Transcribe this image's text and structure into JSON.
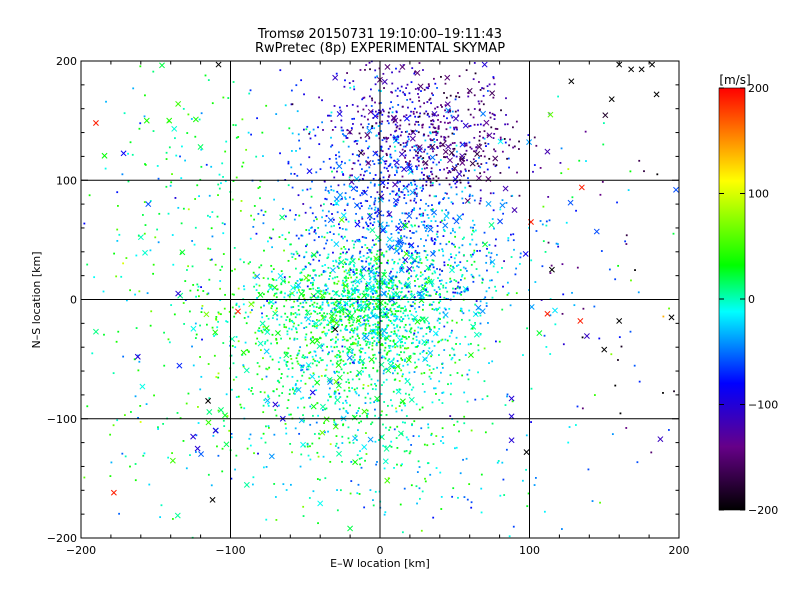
{
  "chart_data": {
    "type": "scatter",
    "title": "Tromsø 20150731 19:10:00–19:11:43",
    "subtitle": "RwPretec (8p) EXPERIMENTAL SKYMAP",
    "xlabel": "E–W location [km]",
    "ylabel": "N–S location [km]",
    "xlim": [
      -200,
      200
    ],
    "ylim": [
      -200,
      200
    ],
    "x_ticks": [
      "−200",
      "−100",
      "0",
      "100",
      "200"
    ],
    "y_ticks": [
      "−200",
      "−100",
      "0",
      "100",
      "200"
    ],
    "grid": "on",
    "colorbar": {
      "unit": "[m/s]",
      "range": [
        -200,
        200
      ],
      "tick_labels": [
        "200",
        "100",
        "0",
        "−100",
        "−200"
      ],
      "colormap": [
        "#000000",
        "#660088",
        "#0000ff",
        "#00ffff",
        "#00ff00",
        "#ffff00",
        "#ff0000"
      ]
    },
    "markers": [
      "dot",
      "x"
    ],
    "clusters": [
      {
        "x": 0,
        "y": 0,
        "sx": 28,
        "sy": 26,
        "n": 850,
        "v": 0,
        "sv": 22
      },
      {
        "x": -20,
        "y": -50,
        "sx": 45,
        "sy": 45,
        "n": 950,
        "v": 5,
        "sv": 30
      },
      {
        "x": -50,
        "y": -10,
        "sx": 38,
        "sy": 30,
        "n": 320,
        "v": 30,
        "sv": 25
      },
      {
        "x": 0,
        "y": 90,
        "sx": 35,
        "sy": 45,
        "n": 650,
        "v": -60,
        "sv": 25
      },
      {
        "x": 20,
        "y": 150,
        "sx": 30,
        "sy": 35,
        "n": 380,
        "v": -120,
        "sv": 25
      },
      {
        "x": 50,
        "y": 130,
        "sx": 22,
        "sy": 20,
        "n": 220,
        "v": -150,
        "sv": 20
      },
      {
        "x": 50,
        "y": 40,
        "sx": 35,
        "sy": 35,
        "n": 300,
        "v": -40,
        "sv": 30
      },
      {
        "x": -140,
        "y": 0,
        "sx": 40,
        "sy": 110,
        "n": 180,
        "v": 0,
        "sv": 40
      },
      {
        "x": -120,
        "y": 110,
        "sx": 30,
        "sy": 50,
        "n": 110,
        "v": 20,
        "sv": 30
      },
      {
        "x": 150,
        "y": 0,
        "sx": 40,
        "sy": 80,
        "n": 90,
        "v": -80,
        "sv": 80
      },
      {
        "x": 0,
        "y": -140,
        "sx": 60,
        "sy": 35,
        "n": 160,
        "v": -10,
        "sv": 35
      }
    ],
    "notable_points": [
      {
        "x": -190,
        "y": 148,
        "v": 190,
        "m": "x"
      },
      {
        "x": -178,
        "y": -162,
        "v": 190,
        "m": "x"
      },
      {
        "x": -112,
        "y": -168,
        "v": -200,
        "m": "x"
      },
      {
        "x": -115,
        "y": -85,
        "v": -200,
        "m": "x"
      },
      {
        "x": -108,
        "y": 197,
        "v": -200,
        "m": "x"
      },
      {
        "x": 98,
        "y": -128,
        "v": -200,
        "m": "x"
      },
      {
        "x": 128,
        "y": 183,
        "v": -200,
        "m": "x"
      },
      {
        "x": 155,
        "y": 168,
        "v": -200,
        "m": "x"
      },
      {
        "x": 160,
        "y": 197,
        "v": -200,
        "m": "x"
      },
      {
        "x": 168,
        "y": 193,
        "v": -200,
        "m": "x"
      },
      {
        "x": 175,
        "y": 193,
        "v": -200,
        "m": "x"
      },
      {
        "x": 182,
        "y": 197,
        "v": -200,
        "m": "x"
      },
      {
        "x": 185,
        "y": 172,
        "v": -200,
        "m": "x"
      },
      {
        "x": 134,
        "y": -18,
        "v": 190,
        "m": "x"
      },
      {
        "x": 112,
        "y": -12,
        "v": 190,
        "m": "x"
      },
      {
        "x": 135,
        "y": 94,
        "v": 190,
        "m": "x"
      },
      {
        "x": 101,
        "y": 65,
        "v": 190,
        "m": "x"
      },
      {
        "x": -95,
        "y": -10,
        "v": 190,
        "m": "x"
      },
      {
        "x": 195,
        "y": -15,
        "v": -200,
        "m": "x"
      },
      {
        "x": 160,
        "y": -18,
        "v": -200,
        "m": "x"
      },
      {
        "x": 150,
        "y": -42,
        "v": -200,
        "m": "x"
      },
      {
        "x": 115,
        "y": 25,
        "v": -200,
        "m": "x"
      },
      {
        "x": -30,
        "y": -25,
        "v": -200,
        "m": "x"
      },
      {
        "x": 198,
        "y": 92,
        "v": -60,
        "m": "x"
      },
      {
        "x": -125,
        "y": -115,
        "v": -100,
        "m": "x"
      },
      {
        "x": -122,
        "y": -125,
        "v": -100,
        "m": "x"
      },
      {
        "x": -110,
        "y": -110,
        "v": -100,
        "m": "x"
      },
      {
        "x": -162,
        "y": -48,
        "v": -100,
        "m": "x"
      },
      {
        "x": -135,
        "y": 5,
        "v": -100,
        "m": "x"
      },
      {
        "x": 88,
        "y": -98,
        "v": -100,
        "m": "x"
      },
      {
        "x": 88,
        "y": -118,
        "v": -100,
        "m": "x"
      },
      {
        "x": 88,
        "y": -83,
        "v": -100,
        "m": "x"
      },
      {
        "x": 90,
        "y": 75,
        "v": -120,
        "m": "x"
      },
      {
        "x": 84,
        "y": 93,
        "v": -120,
        "m": "x"
      },
      {
        "x": 112,
        "y": 124,
        "v": -120,
        "m": "x"
      },
      {
        "x": 145,
        "y": 57,
        "v": -60,
        "m": "x"
      },
      {
        "x": -190,
        "y": -27,
        "v": 10,
        "m": "x"
      },
      {
        "x": -155,
        "y": 80,
        "v": -60,
        "m": "x"
      },
      {
        "x": -135,
        "y": 164,
        "v": 50,
        "m": "x"
      },
      {
        "x": -156,
        "y": 150,
        "v": 40,
        "m": "x"
      },
      {
        "x": -141,
        "y": 150,
        "v": 40,
        "m": "x"
      },
      {
        "x": 114,
        "y": 155,
        "v": 60,
        "m": "x"
      },
      {
        "x": -40,
        "y": -171,
        "v": -10,
        "m": "x"
      },
      {
        "x": -20,
        "y": -192,
        "v": 20,
        "m": "x"
      },
      {
        "x": -70,
        "y": -88,
        "v": -100,
        "m": "x"
      },
      {
        "x": -65,
        "y": -100,
        "v": -90,
        "m": "x"
      },
      {
        "x": -45,
        "y": -78,
        "v": -90,
        "m": "x"
      },
      {
        "x": 20,
        "y": 110,
        "v": -70,
        "m": "x"
      },
      {
        "x": 5,
        "y": 195,
        "v": -150,
        "m": "x"
      },
      {
        "x": 15,
        "y": 195,
        "v": -150,
        "m": "x"
      },
      {
        "x": 25,
        "y": 190,
        "v": -150,
        "m": "x"
      },
      {
        "x": 45,
        "y": 186,
        "v": -150,
        "m": "x"
      },
      {
        "x": 60,
        "y": 175,
        "v": -160,
        "m": "x"
      },
      {
        "x": 75,
        "y": 173,
        "v": -160,
        "m": "x"
      },
      {
        "x": -30,
        "y": 186,
        "v": -110,
        "m": "x"
      },
      {
        "x": 70,
        "y": 197,
        "v": -100,
        "m": "x"
      },
      {
        "x": 48,
        "y": 123,
        "v": -170,
        "m": "x"
      },
      {
        "x": 55,
        "y": 118,
        "v": -170,
        "m": "x"
      },
      {
        "x": 62,
        "y": 114,
        "v": -170,
        "m": "x"
      },
      {
        "x": 35,
        "y": 128,
        "v": -160,
        "m": "x"
      },
      {
        "x": 42,
        "y": 130,
        "v": -160,
        "m": "x"
      },
      {
        "x": 65,
        "y": 122,
        "v": -170,
        "m": "x"
      },
      {
        "x": 50,
        "y": 110,
        "v": -160,
        "m": "x"
      }
    ]
  }
}
